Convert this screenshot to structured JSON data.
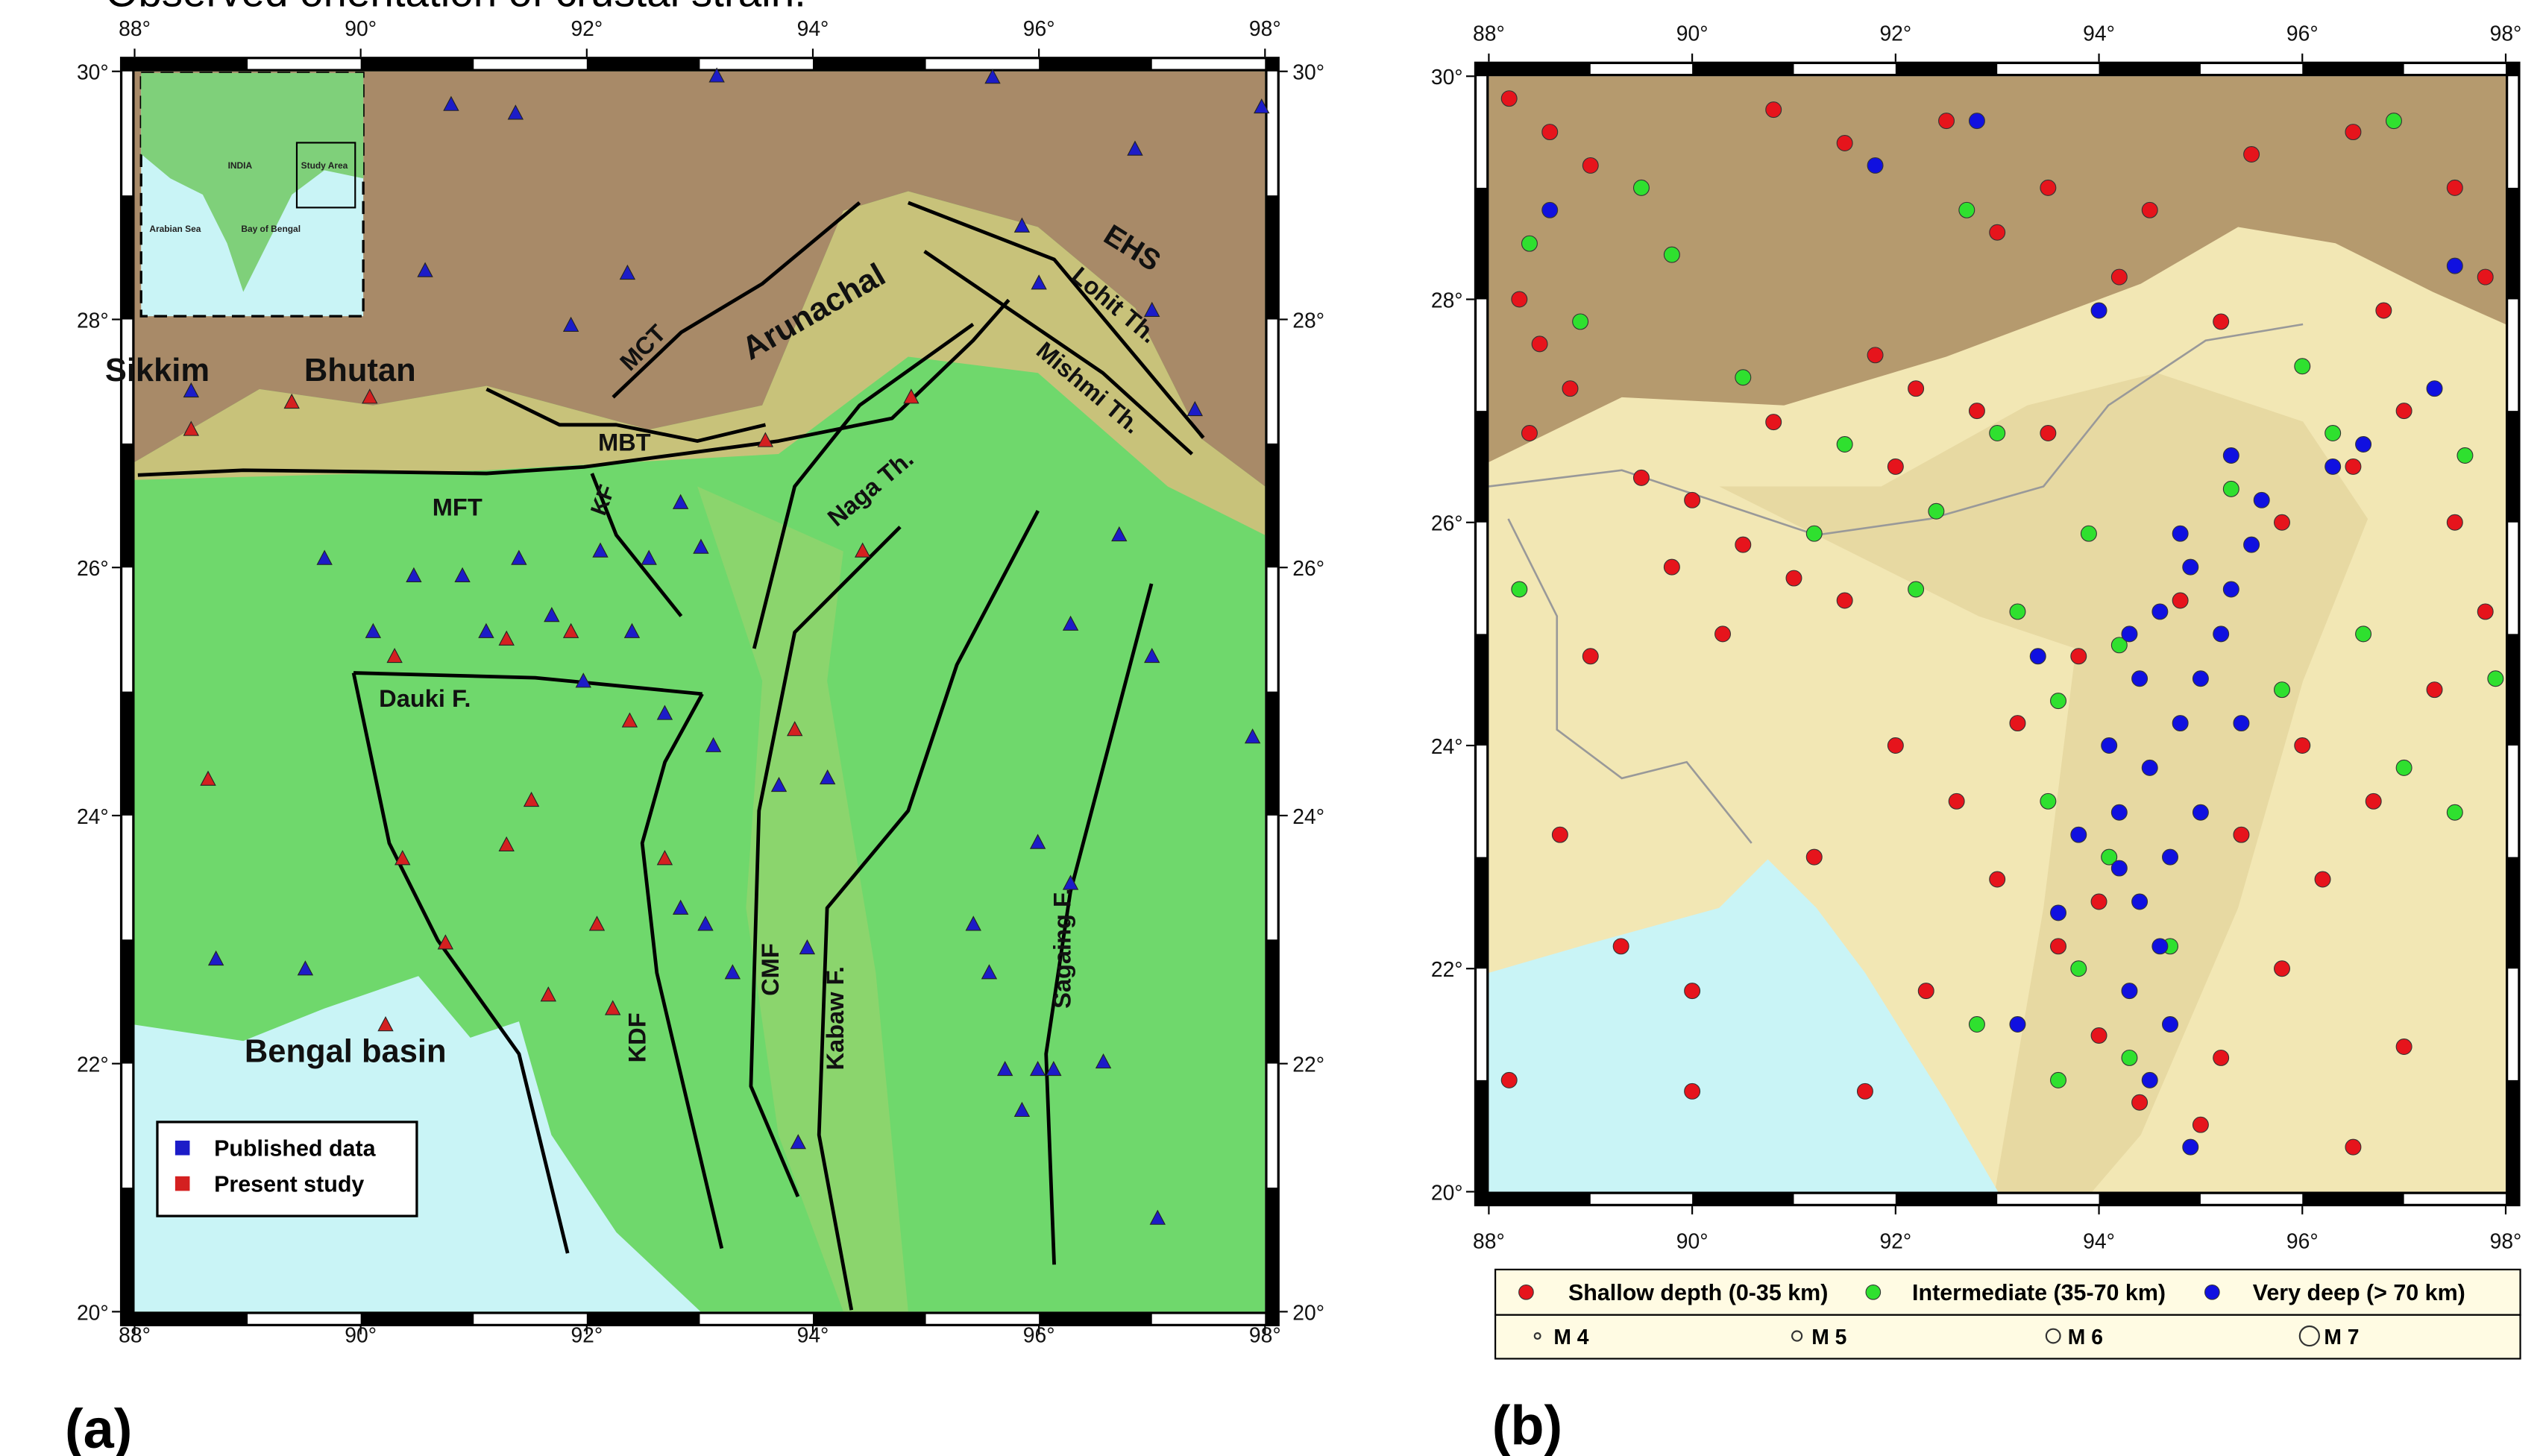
{
  "figure_title": "Observed orientation of crustal strain.",
  "panel_a": {
    "label": "(a)",
    "xlim": [
      88,
      98
    ],
    "ylim": [
      20,
      30
    ],
    "xticks": [
      {
        "value": 88,
        "label": "88°"
      },
      {
        "value": 90,
        "label": "90°"
      },
      {
        "value": 92,
        "label": "92°"
      },
      {
        "value": 94,
        "label": "94°"
      },
      {
        "value": 96,
        "label": "96°"
      },
      {
        "value": 98,
        "label": "98°"
      }
    ],
    "yticks": [
      {
        "value": 20,
        "label": "20°"
      },
      {
        "value": 22,
        "label": "22°"
      },
      {
        "value": 24,
        "label": "24°"
      },
      {
        "value": 26,
        "label": "26°"
      },
      {
        "value": 28,
        "label": "28°"
      },
      {
        "value": 30,
        "label": "30°"
      }
    ],
    "places": [
      "Sikkim",
      "Bhutan",
      "MCT",
      "Arunachal",
      "EHS",
      "Lohit Th.",
      "Mishmi Th.",
      "MBT",
      "MFT",
      "Naga Th.",
      "KF",
      "Dauki F.",
      "CMF",
      "Kabaw F.",
      "Sagaing F.",
      "KDF",
      "Bengal basin"
    ],
    "inset_labels": [
      "INDIA",
      "Study Area",
      "Arabian Sea",
      "Bay of Bengal"
    ],
    "series": [
      {
        "name": "Published data",
        "color": "#1c1cc8",
        "points": [
          [
            90.8,
            29.73
          ],
          [
            91.37,
            29.66
          ],
          [
            93.15,
            29.96
          ],
          [
            95.59,
            29.95
          ],
          [
            97.97,
            29.71
          ],
          [
            96.85,
            29.37
          ],
          [
            95.85,
            28.75
          ],
          [
            96.0,
            28.29
          ],
          [
            97.0,
            28.07
          ],
          [
            92.36,
            28.37
          ],
          [
            91.86,
            27.95
          ],
          [
            90.57,
            28.39
          ],
          [
            88.5,
            27.42
          ],
          [
            97.38,
            27.27
          ],
          [
            96.71,
            26.26
          ],
          [
            96.28,
            25.54
          ],
          [
            97.0,
            25.28
          ],
          [
            97.89,
            24.63
          ],
          [
            95.99,
            23.78
          ],
          [
            96.28,
            23.45
          ],
          [
            95.42,
            23.12
          ],
          [
            95.56,
            22.73
          ],
          [
            95.99,
            21.95
          ],
          [
            95.7,
            21.95
          ],
          [
            96.13,
            21.95
          ],
          [
            96.57,
            22.01
          ],
          [
            95.85,
            21.62
          ],
          [
            97.05,
            20.75
          ],
          [
            93.95,
            22.93
          ],
          [
            93.87,
            21.36
          ],
          [
            88.72,
            22.84
          ],
          [
            89.51,
            22.76
          ],
          [
            89.68,
            26.07
          ],
          [
            90.47,
            25.93
          ],
          [
            90.9,
            25.93
          ],
          [
            91.4,
            26.07
          ],
          [
            92.12,
            26.13
          ],
          [
            92.55,
            26.07
          ],
          [
            93.01,
            26.16
          ],
          [
            92.83,
            26.52
          ],
          [
            91.11,
            25.48
          ],
          [
            91.69,
            25.61
          ],
          [
            92.4,
            25.48
          ],
          [
            91.97,
            25.08
          ],
          [
            92.69,
            24.82
          ],
          [
            93.12,
            24.56
          ],
          [
            93.7,
            24.24
          ],
          [
            94.13,
            24.3
          ],
          [
            92.83,
            23.25
          ],
          [
            93.05,
            23.12
          ],
          [
            93.29,
            22.73
          ],
          [
            90.11,
            25.48
          ]
        ]
      },
      {
        "name": "Present study",
        "color": "#d42020",
        "points": [
          [
            88.65,
            24.29
          ],
          [
            90.3,
            25.28
          ],
          [
            91.29,
            25.42
          ],
          [
            91.86,
            25.48
          ],
          [
            91.51,
            24.12
          ],
          [
            91.29,
            23.76
          ],
          [
            90.37,
            23.65
          ],
          [
            90.75,
            22.97
          ],
          [
            90.22,
            22.31
          ],
          [
            91.66,
            22.55
          ],
          [
            92.09,
            23.12
          ],
          [
            92.23,
            22.44
          ],
          [
            92.69,
            23.65
          ],
          [
            93.58,
            27.02
          ],
          [
            94.87,
            27.37
          ],
          [
            94.44,
            26.13
          ],
          [
            93.84,
            24.69
          ],
          [
            92.38,
            24.76
          ],
          [
            89.39,
            27.33
          ],
          [
            90.08,
            27.37
          ],
          [
            88.5,
            27.11
          ]
        ]
      }
    ]
  },
  "panel_b": {
    "label": "(b)",
    "xlim": [
      88,
      98
    ],
    "ylim": [
      20,
      30
    ],
    "xticks": [
      {
        "value": 88,
        "label": "88°"
      },
      {
        "value": 90,
        "label": "90°"
      },
      {
        "value": 92,
        "label": "92°"
      },
      {
        "value": 94,
        "label": "94°"
      },
      {
        "value": 96,
        "label": "96°"
      },
      {
        "value": 98,
        "label": "98°"
      }
    ],
    "yticks": [
      {
        "value": 20,
        "label": "20°"
      },
      {
        "value": 22,
        "label": "22°"
      },
      {
        "value": 24,
        "label": "24°"
      },
      {
        "value": 26,
        "label": "26°"
      },
      {
        "value": 28,
        "label": "28°"
      },
      {
        "value": 30,
        "label": "30°"
      }
    ],
    "series": [
      {
        "name": "Shallow depth (0-35 km)",
        "color": "#e6141c",
        "points": [
          [
            88.2,
            29.8
          ],
          [
            88.6,
            29.5
          ],
          [
            89.0,
            29.2
          ],
          [
            88.3,
            28.0
          ],
          [
            88.5,
            27.6
          ],
          [
            88.8,
            27.2
          ],
          [
            88.4,
            26.8
          ],
          [
            89.5,
            26.4
          ],
          [
            90.0,
            26.2
          ],
          [
            90.5,
            25.8
          ],
          [
            91.0,
            25.5
          ],
          [
            91.5,
            25.3
          ],
          [
            90.3,
            25.0
          ],
          [
            89.8,
            25.6
          ],
          [
            91.8,
            27.5
          ],
          [
            92.2,
            27.2
          ],
          [
            92.8,
            27.0
          ],
          [
            93.5,
            26.8
          ],
          [
            90.8,
            29.7
          ],
          [
            91.5,
            29.4
          ],
          [
            92.5,
            29.6
          ],
          [
            93.5,
            29.0
          ],
          [
            94.5,
            28.8
          ],
          [
            95.5,
            29.3
          ],
          [
            96.5,
            29.5
          ],
          [
            97.5,
            29.0
          ],
          [
            97.8,
            28.2
          ],
          [
            96.8,
            27.9
          ],
          [
            95.2,
            27.8
          ],
          [
            94.2,
            28.2
          ],
          [
            93.0,
            28.6
          ],
          [
            97.0,
            27.0
          ],
          [
            97.5,
            26.0
          ],
          [
            96.5,
            26.5
          ],
          [
            95.8,
            26.0
          ],
          [
            94.8,
            25.3
          ],
          [
            93.8,
            24.8
          ],
          [
            93.2,
            24.2
          ],
          [
            92.6,
            23.5
          ],
          [
            93.0,
            22.8
          ],
          [
            93.6,
            22.2
          ],
          [
            94.0,
            21.4
          ],
          [
            94.4,
            20.8
          ],
          [
            95.2,
            21.2
          ],
          [
            95.8,
            22.0
          ],
          [
            96.2,
            22.8
          ],
          [
            96.7,
            23.5
          ],
          [
            97.3,
            24.5
          ],
          [
            97.8,
            25.2
          ],
          [
            96.0,
            24.0
          ],
          [
            95.4,
            23.2
          ],
          [
            92.0,
            24.0
          ],
          [
            91.2,
            23.0
          ],
          [
            90.0,
            21.8
          ],
          [
            89.3,
            22.2
          ],
          [
            88.2,
            21.0
          ],
          [
            90.0,
            20.9
          ],
          [
            94.0,
            22.6
          ],
          [
            95.0,
            20.6
          ],
          [
            97.0,
            21.3
          ],
          [
            96.5,
            20.4
          ],
          [
            92.3,
            21.8
          ],
          [
            91.7,
            20.9
          ],
          [
            88.7,
            23.2
          ],
          [
            89.0,
            24.8
          ],
          [
            90.8,
            26.9
          ],
          [
            92.0,
            26.5
          ]
        ]
      },
      {
        "name": "Intermediate (35-70 km)",
        "color": "#2fe02f",
        "points": [
          [
            88.4,
            28.5
          ],
          [
            88.9,
            27.8
          ],
          [
            89.8,
            28.4
          ],
          [
            90.5,
            27.3
          ],
          [
            91.5,
            26.7
          ],
          [
            92.4,
            26.1
          ],
          [
            93.0,
            26.8
          ],
          [
            93.9,
            25.9
          ],
          [
            94.2,
            24.9
          ],
          [
            93.6,
            24.4
          ],
          [
            93.5,
            23.5
          ],
          [
            94.1,
            23.0
          ],
          [
            93.8,
            22.0
          ],
          [
            94.3,
            21.2
          ],
          [
            93.6,
            21.0
          ],
          [
            95.3,
            26.3
          ],
          [
            96.3,
            26.8
          ],
          [
            97.6,
            26.6
          ],
          [
            97.9,
            24.6
          ],
          [
            97.0,
            23.8
          ],
          [
            96.6,
            25.0
          ],
          [
            95.8,
            24.5
          ],
          [
            89.5,
            29.0
          ],
          [
            92.7,
            28.8
          ],
          [
            96.9,
            29.6
          ],
          [
            92.2,
            25.4
          ],
          [
            91.2,
            25.9
          ],
          [
            93.2,
            25.2
          ],
          [
            94.7,
            22.2
          ],
          [
            88.3,
            25.4
          ],
          [
            92.8,
            21.5
          ],
          [
            97.5,
            23.4
          ],
          [
            96.0,
            27.4
          ]
        ]
      },
      {
        "name": "Very deep (> 70 km)",
        "color": "#1010e0",
        "points": [
          [
            94.6,
            25.2
          ],
          [
            94.9,
            25.6
          ],
          [
            95.2,
            25.0
          ],
          [
            94.4,
            24.6
          ],
          [
            94.8,
            24.2
          ],
          [
            94.5,
            23.8
          ],
          [
            94.2,
            23.4
          ],
          [
            94.7,
            23.0
          ],
          [
            94.4,
            22.6
          ],
          [
            94.6,
            22.2
          ],
          [
            94.3,
            21.8
          ],
          [
            94.7,
            21.5
          ],
          [
            94.5,
            21.0
          ],
          [
            94.9,
            20.4
          ],
          [
            95.3,
            25.4
          ],
          [
            95.6,
            26.2
          ],
          [
            95.3,
            26.6
          ],
          [
            96.3,
            26.5
          ],
          [
            96.6,
            26.7
          ],
          [
            97.3,
            27.2
          ],
          [
            94.1,
            24.0
          ],
          [
            93.8,
            23.2
          ],
          [
            93.6,
            22.5
          ],
          [
            95.0,
            24.6
          ],
          [
            95.4,
            24.2
          ],
          [
            94.3,
            25.0
          ],
          [
            94.8,
            25.9
          ],
          [
            95.5,
            25.8
          ],
          [
            93.4,
            24.8
          ],
          [
            93.2,
            21.5
          ],
          [
            95.0,
            23.4
          ],
          [
            94.2,
            22.9
          ],
          [
            91.8,
            29.2
          ],
          [
            92.8,
            29.6
          ],
          [
            97.5,
            28.3
          ],
          [
            94.0,
            27.9
          ],
          [
            88.6,
            28.8
          ]
        ]
      }
    ],
    "magnitude_legend": [
      "M 4",
      "M 5",
      "M 6",
      "M 7"
    ]
  }
}
